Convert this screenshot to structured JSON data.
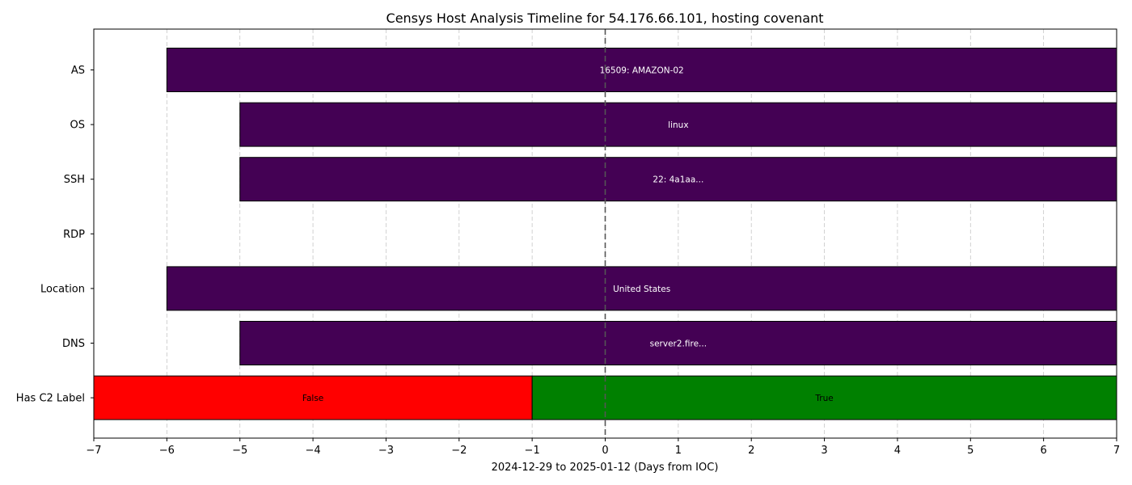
{
  "chart_data": {
    "type": "timeline",
    "title": "Censys Host Analysis Timeline for 54.176.66.101, hosting covenant",
    "xlabel": "2024-12-29 to 2025-01-12 (Days from IOC)",
    "ylabel": "",
    "xlim": [
      -7,
      7
    ],
    "xticks": [
      -7,
      -6,
      -5,
      -4,
      -3,
      -2,
      -1,
      0,
      1,
      2,
      3,
      4,
      5,
      6,
      7
    ],
    "xtick_labels": [
      "−7",
      "−6",
      "−5",
      "−4",
      "−3",
      "−2",
      "−1",
      "0",
      "1",
      "2",
      "3",
      "4",
      "5",
      "6",
      "7"
    ],
    "ioc_marker_x": 0,
    "grid": "vertical dashed",
    "rows": [
      {
        "label": "AS",
        "segments": [
          {
            "start": -6,
            "end": 7,
            "text": "16509: AMAZON-02",
            "color": "#440154"
          }
        ]
      },
      {
        "label": "OS",
        "segments": [
          {
            "start": -5,
            "end": 7,
            "text": "linux",
            "color": "#440154"
          }
        ]
      },
      {
        "label": "SSH",
        "segments": [
          {
            "start": -5,
            "end": 7,
            "text": "22: 4a1aa...",
            "color": "#440154"
          }
        ]
      },
      {
        "label": "RDP",
        "segments": []
      },
      {
        "label": "Location",
        "segments": [
          {
            "start": -6,
            "end": 7,
            "text": "United States",
            "color": "#440154"
          }
        ]
      },
      {
        "label": "DNS",
        "segments": [
          {
            "start": -5,
            "end": 7,
            "text": "server2.fire...",
            "color": "#440154"
          }
        ]
      },
      {
        "label": "Has C2 Label",
        "segments": [
          {
            "start": -7,
            "end": -1,
            "text": "False",
            "color": "#ff0000"
          },
          {
            "start": -1,
            "end": 7,
            "text": "True",
            "color": "#008000"
          }
        ]
      }
    ]
  }
}
